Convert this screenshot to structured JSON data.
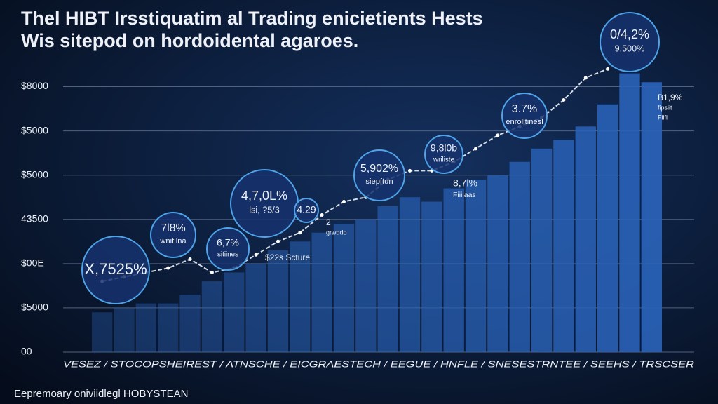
{
  "chart_data": {
    "type": "bar",
    "title": "Thel HIBT Irsstiquatim al Trading enicietients Hests",
    "subtitle": "Wis sitepod on hordoidental agaroes.",
    "footer": "Eepremoary oniviidlegl HOBYSTEAN",
    "x_axis_text": "VESEZ / STOCOPSHEIREST / ATNSCHE / EICGRAESTECH / EEGUE / HNFLE / SNESESTRNTEE / SEEHS / TRSCSER",
    "categories": [
      null,
      null,
      null,
      null,
      null,
      null,
      null,
      null,
      null,
      null,
      null,
      null,
      null,
      null,
      null,
      null,
      null,
      null,
      null,
      null,
      null,
      null,
      null,
      null,
      null,
      null
    ],
    "values": [
      0.9,
      1.0,
      1.1,
      1.1,
      1.3,
      1.6,
      1.8,
      2.0,
      2.3,
      2.5,
      2.7,
      2.9,
      3.0,
      3.3,
      3.5,
      3.4,
      3.7,
      3.9,
      4.0,
      4.3,
      4.6,
      4.8,
      5.1,
      5.6,
      6.3,
      6.1
    ],
    "color": "#2a62b8",
    "line": {
      "color": "#d8dde6",
      "values": [
        1.6,
        1.7,
        1.8,
        1.9,
        2.1,
        1.8,
        1.9,
        2.2,
        2.5,
        2.7,
        3.1,
        3.4,
        3.5,
        3.9,
        4.1,
        4.1,
        4.3,
        4.6,
        4.9,
        5.1,
        5.3,
        5.7,
        6.2,
        6.4,
        null,
        null
      ]
    },
    "ylim": [
      0,
      6.5
    ],
    "yticks": [
      {
        "value": 0,
        "label": "00"
      },
      {
        "value": 1,
        "label": "$5000"
      },
      {
        "value": 2,
        "label": "$00E"
      },
      {
        "value": 3,
        "label": "43500"
      },
      {
        "value": 4,
        "label": "$5000"
      },
      {
        "value": 5,
        "label": "$5000"
      },
      {
        "value": 6,
        "label": "$8000"
      }
    ],
    "grid": true,
    "annotations": [
      {
        "lines": [
          "X,7525%"
        ]
      },
      {
        "lines": [
          "7l8%",
          "wnitilna"
        ]
      },
      {
        "lines": [
          "6,7%",
          "sitiines"
        ]
      },
      {
        "lines": [
          "4,7,0L%",
          "lsi, ?5/3"
        ]
      },
      {
        "lines": [
          "4.29"
        ]
      },
      {
        "lines": [
          "5,902%",
          "siepftun"
        ]
      },
      {
        "lines": [
          "9,8l0b",
          "wriliste"
        ]
      },
      {
        "lines": [
          "3.7%",
          "enrolltinesl"
        ]
      },
      {
        "lines": [
          "0/4,2%",
          "9,500%"
        ]
      }
    ],
    "notes": [
      {
        "lines": [
          "$22s Scture"
        ]
      },
      {
        "lines": [
          "2",
          "grwddo"
        ]
      },
      {
        "lines": [
          "8,7l%",
          "Fiiilaas"
        ]
      },
      {
        "lines": [
          "B1,9%",
          "fipsiit",
          "Fiifi"
        ]
      }
    ]
  }
}
